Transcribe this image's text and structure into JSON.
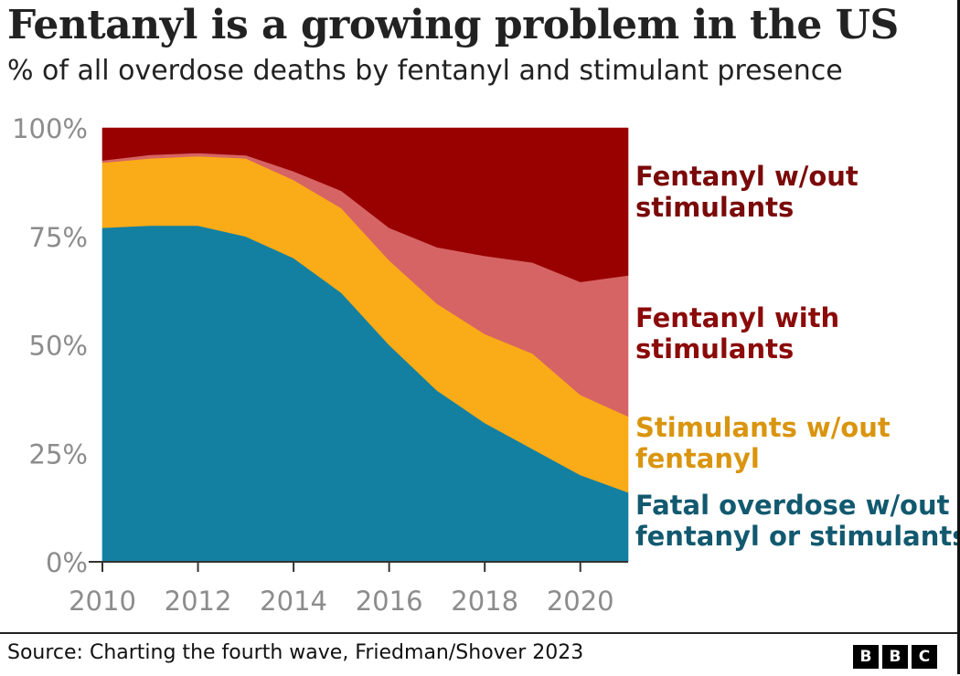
{
  "title": "Fentanyl is a growing problem in the US",
  "subtitle": "% of all overdose deaths by fentanyl and stimulant presence",
  "source": "Source: Charting the fourth wave, Friedman/Shover 2023",
  "logo": {
    "letters": [
      "B",
      "B",
      "C"
    ]
  },
  "chart_data": {
    "type": "area",
    "stacked": true,
    "x": [
      2010,
      2011,
      2012,
      2013,
      2014,
      2015,
      2016,
      2017,
      2018,
      2019,
      2020,
      2021
    ],
    "xlim": [
      2010,
      2021
    ],
    "x_ticks": [
      2010,
      2012,
      2014,
      2016,
      2018,
      2020
    ],
    "x_tick_labels": [
      "2010",
      "2012",
      "2014",
      "2016",
      "2018",
      "2020"
    ],
    "ylim": [
      0,
      100
    ],
    "y_ticks": [
      0,
      25,
      50,
      75,
      100
    ],
    "y_tick_labels": [
      "0%",
      "25%",
      "50%",
      "75%",
      "100%"
    ],
    "grid": false,
    "legend": "direct labels at right",
    "series": [
      {
        "name": "Fatal overdose w/out fentanyl or stimulants",
        "color": "#1380A1",
        "label_color": "#12596F",
        "values": [
          77,
          77.5,
          77.5,
          75,
          70,
          62,
          50,
          39.5,
          32,
          26,
          20,
          16
        ]
      },
      {
        "name": "Stimulants w/out fentanyl",
        "color": "#FAAB18",
        "label_color": "#D9950F",
        "values": [
          15,
          15.5,
          16,
          18,
          18,
          19.5,
          19.5,
          20,
          20.5,
          22,
          18.5,
          17.5
        ]
      },
      {
        "name": "Fentanyl with stimulants",
        "color": "#D66464",
        "label_color": "#8B0A0A",
        "values": [
          0.5,
          0.8,
          0.7,
          0.7,
          2,
          4,
          7.5,
          13,
          18,
          21,
          26,
          32.5
        ]
      },
      {
        "name": "Fentanyl w/out stimulants",
        "color": "#990000",
        "label_color": "#7A0A0A",
        "values": [
          7.5,
          6.2,
          5.8,
          6.3,
          10,
          14.5,
          23,
          27.5,
          29.5,
          31,
          35.5,
          34
        ]
      }
    ],
    "direct_labels": [
      {
        "series": 3,
        "lines": [
          "Fentanyl w/out",
          "stimulants"
        ]
      },
      {
        "series": 2,
        "lines": [
          "Fentanyl with",
          "stimulants"
        ]
      },
      {
        "series": 1,
        "lines": [
          "Stimulants w/out",
          "fentanyl"
        ]
      },
      {
        "series": 0,
        "lines": [
          "Fatal overdose w/out",
          "fentanyl or stimulants"
        ]
      }
    ]
  }
}
